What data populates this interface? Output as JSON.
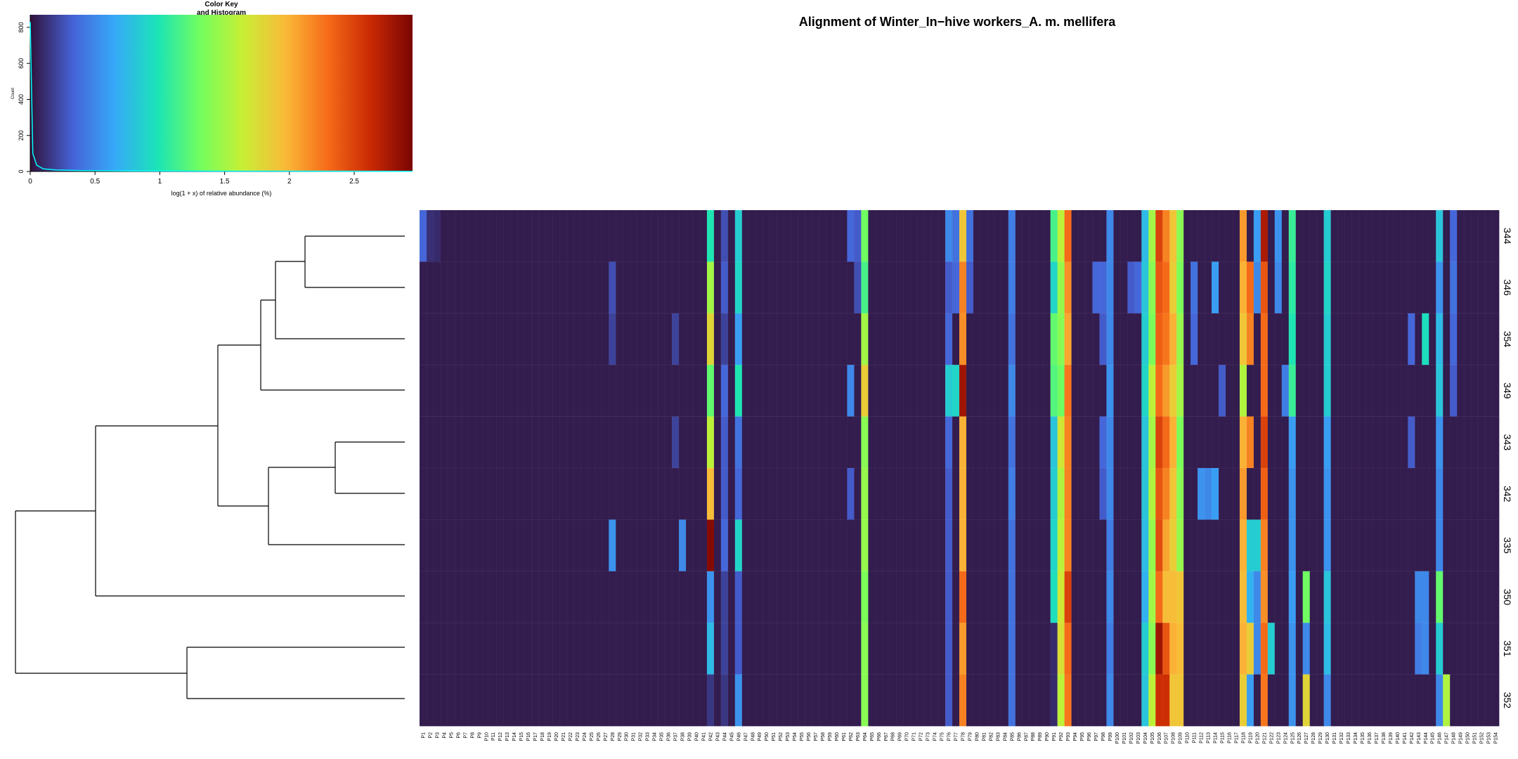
{
  "chart_data": {
    "type": "heatmap",
    "title": "Alignment of Winter_In−hive workers_A. m. mellifera",
    "color_key": {
      "title_line1": "Color Key",
      "title_line2": "and Histogram",
      "xlabel": "log(1 + x) of relative abundance (%)",
      "ylabel": "Count",
      "xticks": [
        "0",
        "0.5",
        "1",
        "1.5",
        "2",
        "2.5"
      ],
      "xtick_values": [
        0,
        0.5,
        1,
        1.5,
        2,
        2.5
      ],
      "yticks": [
        "0",
        "200",
        "400",
        "600",
        "800"
      ],
      "ytick_values": [
        0,
        200,
        400,
        600,
        800
      ],
      "xlim": [
        0,
        2.95
      ],
      "ylim": [
        0,
        870
      ],
      "histogram_x": [
        0.0,
        0.02,
        0.05,
        0.1,
        0.2,
        0.4,
        0.8,
        1.5,
        2.95
      ],
      "histogram_y": [
        830,
        100,
        35,
        15,
        8,
        5,
        3,
        2,
        1
      ]
    },
    "colormap": [
      "#30123b",
      "#4662d7",
      "#36aaf9",
      "#1ae4b6",
      "#72fe5e",
      "#c7ef34",
      "#faba39",
      "#f66b19",
      "#ca2a04",
      "#7a0403"
    ],
    "value_range": [
      0,
      2.95
    ],
    "rows": [
      "344",
      "346",
      "354",
      "349",
      "343",
      "342",
      "335",
      "350",
      "351",
      "352"
    ],
    "columns": [
      "P1",
      "P2",
      "P3",
      "P4",
      "P5",
      "P6",
      "P7",
      "P8",
      "P9",
      "P10",
      "P11",
      "P12",
      "P13",
      "P14",
      "P15",
      "P16",
      "P17",
      "P18",
      "P19",
      "P20",
      "P21",
      "P22",
      "P23",
      "P24",
      "P25",
      "P26",
      "P27",
      "P28",
      "P29",
      "P30",
      "P31",
      "P32",
      "P33",
      "P34",
      "P35",
      "P36",
      "P37",
      "P38",
      "P39",
      "P40",
      "P41",
      "P42",
      "P43",
      "P44",
      "P45",
      "P46",
      "P47",
      "P48",
      "P49",
      "P50",
      "P51",
      "P52",
      "P53",
      "P54",
      "P55",
      "P56",
      "P57",
      "P58",
      "P59",
      "P60",
      "P61",
      "P62",
      "P63",
      "P64",
      "P65",
      "P66",
      "P67",
      "P68",
      "P69",
      "P70",
      "P71",
      "P72",
      "P73",
      "P74",
      "P75",
      "P76",
      "P77",
      "P78",
      "P79",
      "P80",
      "P81",
      "P82",
      "P83",
      "P84",
      "P85",
      "P86",
      "P87",
      "P88",
      "P89",
      "P90",
      "P91",
      "P92",
      "P93",
      "P94",
      "P95",
      "P96",
      "P97",
      "P98",
      "P99",
      "P100",
      "P101",
      "P102",
      "P103",
      "P104",
      "P105",
      "P106",
      "P107",
      "P108",
      "P109",
      "P110",
      "P111",
      "P112",
      "P113",
      "P114",
      "P115",
      "P116",
      "P117",
      "P118",
      "P119",
      "P120",
      "P121",
      "P122",
      "P123",
      "P124",
      "P125",
      "P126",
      "P127",
      "P128",
      "P129",
      "P130",
      "P131",
      "P132",
      "P133",
      "P134",
      "P135",
      "P136",
      "P137",
      "P138",
      "P139",
      "P140",
      "P141",
      "P142",
      "P143",
      "P144",
      "P145",
      "P146",
      "P147",
      "P148",
      "P149",
      "P150",
      "P151",
      "P152",
      "P153",
      "P154"
    ],
    "hot_cells": [
      [
        0,
        0,
        0.35
      ],
      [
        1,
        0,
        0.12
      ],
      [
        2,
        0,
        0.1
      ],
      [
        41,
        0,
        1.0
      ],
      [
        41,
        1,
        1.5
      ],
      [
        41,
        2,
        1.8
      ],
      [
        41,
        3,
        1.25
      ],
      [
        41,
        4,
        1.6
      ],
      [
        41,
        5,
        1.95
      ],
      [
        41,
        6,
        2.9
      ],
      [
        41,
        7,
        0.55
      ],
      [
        41,
        8,
        0.75
      ],
      [
        41,
        9,
        0.15
      ],
      [
        43,
        0,
        0.25
      ],
      [
        43,
        1,
        0.3
      ],
      [
        43,
        2,
        0.2
      ],
      [
        43,
        3,
        0.35
      ],
      [
        43,
        4,
        0.3
      ],
      [
        43,
        5,
        0.3
      ],
      [
        43,
        6,
        0.35
      ],
      [
        43,
        7,
        0.2
      ],
      [
        43,
        8,
        0.2
      ],
      [
        43,
        9,
        0.15
      ],
      [
        45,
        0,
        0.85
      ],
      [
        45,
        1,
        0.9
      ],
      [
        45,
        2,
        0.6
      ],
      [
        45,
        3,
        1.0
      ],
      [
        45,
        4,
        0.4
      ],
      [
        45,
        5,
        0.35
      ],
      [
        45,
        6,
        0.9
      ],
      [
        45,
        7,
        0.3
      ],
      [
        45,
        8,
        0.3
      ],
      [
        45,
        9,
        0.55
      ],
      [
        27,
        1,
        0.25
      ],
      [
        27,
        2,
        0.2
      ],
      [
        27,
        6,
        0.55
      ],
      [
        37,
        6,
        0.5
      ],
      [
        36,
        4,
        0.2
      ],
      [
        36,
        2,
        0.2
      ],
      [
        61,
        0,
        0.35
      ],
      [
        61,
        3,
        0.5
      ],
      [
        61,
        5,
        0.3
      ],
      [
        62,
        0,
        0.3
      ],
      [
        62,
        1,
        0.25
      ],
      [
        63,
        0,
        1.3
      ],
      [
        63,
        1,
        1.15
      ],
      [
        63,
        2,
        1.5
      ],
      [
        63,
        3,
        1.85
      ],
      [
        63,
        4,
        1.4
      ],
      [
        63,
        5,
        1.45
      ],
      [
        63,
        6,
        1.45
      ],
      [
        63,
        7,
        1.35
      ],
      [
        63,
        8,
        1.4
      ],
      [
        63,
        9,
        1.4
      ],
      [
        75,
        0,
        0.5
      ],
      [
        75,
        1,
        0.3
      ],
      [
        75,
        2,
        0.35
      ],
      [
        75,
        3,
        0.85
      ],
      [
        75,
        4,
        0.35
      ],
      [
        75,
        5,
        0.3
      ],
      [
        75,
        6,
        0.3
      ],
      [
        75,
        7,
        0.3
      ],
      [
        75,
        8,
        0.3
      ],
      [
        75,
        9,
        0.3
      ],
      [
        76,
        0,
        0.4
      ],
      [
        76,
        1,
        0.35
      ],
      [
        76,
        3,
        0.9
      ],
      [
        77,
        0,
        1.9
      ],
      [
        77,
        1,
        2.2
      ],
      [
        77,
        2,
        2.15
      ],
      [
        77,
        3,
        2.8
      ],
      [
        77,
        4,
        2.0
      ],
      [
        77,
        5,
        2.0
      ],
      [
        77,
        6,
        2.0
      ],
      [
        77,
        7,
        2.3
      ],
      [
        77,
        8,
        2.1
      ],
      [
        77,
        9,
        2.2
      ],
      [
        78,
        0,
        0.4
      ],
      [
        78,
        1,
        0.3
      ],
      [
        84,
        0,
        0.45
      ],
      [
        84,
        1,
        0.45
      ],
      [
        84,
        2,
        0.4
      ],
      [
        84,
        3,
        0.5
      ],
      [
        84,
        4,
        0.4
      ],
      [
        84,
        5,
        0.45
      ],
      [
        84,
        6,
        0.4
      ],
      [
        84,
        7,
        0.4
      ],
      [
        84,
        8,
        0.4
      ],
      [
        84,
        9,
        0.4
      ],
      [
        90,
        0,
        1.15
      ],
      [
        90,
        1,
        0.9
      ],
      [
        90,
        2,
        1.25
      ],
      [
        90,
        3,
        1.2
      ],
      [
        90,
        4,
        0.8
      ],
      [
        90,
        5,
        0.85
      ],
      [
        90,
        6,
        0.9
      ],
      [
        90,
        7,
        0.95
      ],
      [
        90,
        8,
        0.1
      ],
      [
        90,
        9,
        0.1
      ],
      [
        91,
        0,
        1.6
      ],
      [
        91,
        1,
        1.45
      ],
      [
        91,
        2,
        1.4
      ],
      [
        91,
        3,
        1.3
      ],
      [
        91,
        4,
        1.7
      ],
      [
        91,
        5,
        1.55
      ],
      [
        91,
        6,
        1.6
      ],
      [
        91,
        7,
        1.7
      ],
      [
        91,
        8,
        1.75
      ],
      [
        91,
        9,
        1.6
      ],
      [
        92,
        0,
        2.3
      ],
      [
        92,
        1,
        2.15
      ],
      [
        92,
        2,
        2.05
      ],
      [
        92,
        3,
        2.25
      ],
      [
        92,
        4,
        2.2
      ],
      [
        92,
        5,
        2.2
      ],
      [
        92,
        6,
        2.2
      ],
      [
        92,
        7,
        2.5
      ],
      [
        92,
        8,
        2.3
      ],
      [
        92,
        9,
        2.25
      ],
      [
        96,
        1,
        0.35
      ],
      [
        97,
        1,
        0.35
      ],
      [
        97,
        2,
        0.3
      ],
      [
        97,
        4,
        0.35
      ],
      [
        97,
        5,
        0.3
      ],
      [
        98,
        0,
        0.5
      ],
      [
        98,
        1,
        0.5
      ],
      [
        98,
        2,
        0.5
      ],
      [
        98,
        3,
        0.55
      ],
      [
        98,
        4,
        0.5
      ],
      [
        98,
        5,
        0.5
      ],
      [
        98,
        6,
        0.45
      ],
      [
        98,
        7,
        0.5
      ],
      [
        98,
        8,
        0.45
      ],
      [
        98,
        9,
        0.5
      ],
      [
        101,
        1,
        0.3
      ],
      [
        102,
        1,
        0.35
      ],
      [
        103,
        0,
        0.75
      ],
      [
        103,
        1,
        0.8
      ],
      [
        103,
        2,
        0.85
      ],
      [
        103,
        3,
        0.9
      ],
      [
        103,
        4,
        0.8
      ],
      [
        103,
        5,
        0.8
      ],
      [
        103,
        6,
        0.75
      ],
      [
        103,
        7,
        0.7
      ],
      [
        103,
        8,
        0.85
      ],
      [
        103,
        9,
        0.8
      ],
      [
        104,
        0,
        1.5
      ],
      [
        104,
        1,
        1.4
      ],
      [
        104,
        2,
        1.35
      ],
      [
        104,
        3,
        1.6
      ],
      [
        104,
        4,
        1.5
      ],
      [
        104,
        5,
        1.55
      ],
      [
        104,
        6,
        1.45
      ],
      [
        104,
        7,
        1.5
      ],
      [
        104,
        8,
        1.4
      ],
      [
        104,
        9,
        1.6
      ],
      [
        105,
        0,
        2.5
      ],
      [
        105,
        1,
        2.4
      ],
      [
        105,
        2,
        2.35
      ],
      [
        105,
        3,
        2.3
      ],
      [
        105,
        4,
        2.5
      ],
      [
        105,
        5,
        2.4
      ],
      [
        105,
        6,
        2.45
      ],
      [
        105,
        7,
        2.3
      ],
      [
        105,
        8,
        2.8
      ],
      [
        105,
        9,
        2.6
      ],
      [
        106,
        0,
        2.2
      ],
      [
        106,
        1,
        2.3
      ],
      [
        106,
        2,
        2.25
      ],
      [
        106,
        3,
        2.1
      ],
      [
        106,
        4,
        2.3
      ],
      [
        106,
        5,
        2.2
      ],
      [
        106,
        6,
        2.05
      ],
      [
        106,
        7,
        1.95
      ],
      [
        106,
        8,
        2.4
      ],
      [
        106,
        9,
        2.6
      ],
      [
        107,
        0,
        1.9
      ],
      [
        107,
        1,
        1.85
      ],
      [
        107,
        2,
        2.0
      ],
      [
        107,
        3,
        1.85
      ],
      [
        107,
        4,
        2.0
      ],
      [
        107,
        5,
        1.9
      ],
      [
        107,
        6,
        1.85
      ],
      [
        107,
        7,
        1.95
      ],
      [
        107,
        8,
        2.0
      ],
      [
        107,
        9,
        1.9
      ],
      [
        108,
        0,
        1.4
      ],
      [
        108,
        1,
        1.35
      ],
      [
        108,
        2,
        1.45
      ],
      [
        108,
        3,
        1.5
      ],
      [
        108,
        4,
        1.35
      ],
      [
        108,
        5,
        1.4
      ],
      [
        108,
        6,
        1.45
      ],
      [
        108,
        7,
        1.9
      ],
      [
        108,
        8,
        1.95
      ],
      [
        108,
        9,
        1.9
      ],
      [
        110,
        1,
        0.4
      ],
      [
        110,
        2,
        0.35
      ],
      [
        111,
        5,
        0.55
      ],
      [
        112,
        5,
        0.5
      ],
      [
        113,
        1,
        0.6
      ],
      [
        113,
        5,
        0.6
      ],
      [
        114,
        3,
        0.3
      ],
      [
        117,
        0,
        2.1
      ],
      [
        117,
        1,
        2.0
      ],
      [
        117,
        2,
        1.9
      ],
      [
        117,
        3,
        1.55
      ],
      [
        117,
        4,
        2.0
      ],
      [
        117,
        5,
        2.1
      ],
      [
        117,
        6,
        2.0
      ],
      [
        117,
        7,
        1.95
      ],
      [
        117,
        8,
        2.0
      ],
      [
        117,
        9,
        1.85
      ],
      [
        118,
        1,
        2.3
      ],
      [
        118,
        2,
        2.2
      ],
      [
        118,
        4,
        2.2
      ],
      [
        118,
        6,
        0.85
      ],
      [
        118,
        7,
        0.7
      ],
      [
        118,
        8,
        1.85
      ],
      [
        118,
        9,
        0.6
      ],
      [
        119,
        0,
        0.6
      ],
      [
        119,
        1,
        0.5
      ],
      [
        119,
        6,
        0.85
      ],
      [
        119,
        7,
        0.5
      ],
      [
        119,
        8,
        0.5
      ],
      [
        120,
        0,
        2.75
      ],
      [
        120,
        1,
        2.4
      ],
      [
        120,
        2,
        2.3
      ],
      [
        120,
        3,
        2.3
      ],
      [
        120,
        4,
        2.5
      ],
      [
        120,
        5,
        2.35
      ],
      [
        120,
        6,
        2.2
      ],
      [
        120,
        7,
        2.15
      ],
      [
        120,
        8,
        2.3
      ],
      [
        120,
        9,
        2.25
      ],
      [
        121,
        8,
        0.85
      ],
      [
        122,
        0,
        0.55
      ],
      [
        122,
        1,
        0.5
      ],
      [
        123,
        3,
        0.45
      ],
      [
        124,
        0,
        1.1
      ],
      [
        124,
        1,
        1.05
      ],
      [
        124,
        2,
        1.0
      ],
      [
        124,
        3,
        1.1
      ],
      [
        124,
        4,
        0.6
      ],
      [
        124,
        5,
        0.55
      ],
      [
        124,
        6,
        0.55
      ],
      [
        124,
        7,
        0.6
      ],
      [
        124,
        8,
        0.55
      ],
      [
        124,
        9,
        0.55
      ],
      [
        126,
        7,
        1.3
      ],
      [
        126,
        8,
        0.5
      ],
      [
        126,
        9,
        1.8
      ],
      [
        129,
        0,
        0.85
      ],
      [
        129,
        1,
        0.9
      ],
      [
        129,
        2,
        0.85
      ],
      [
        129,
        3,
        0.85
      ],
      [
        129,
        4,
        0.6
      ],
      [
        129,
        5,
        0.55
      ],
      [
        129,
        6,
        0.55
      ],
      [
        129,
        7,
        0.8
      ],
      [
        129,
        8,
        0.75
      ],
      [
        129,
        9,
        0.5
      ],
      [
        141,
        2,
        0.35
      ],
      [
        141,
        4,
        0.3
      ],
      [
        142,
        7,
        0.5
      ],
      [
        142,
        8,
        0.45
      ],
      [
        143,
        2,
        0.95
      ],
      [
        143,
        7,
        0.5
      ],
      [
        143,
        8,
        0.5
      ],
      [
        145,
        0,
        0.8
      ],
      [
        145,
        1,
        0.55
      ],
      [
        145,
        2,
        0.75
      ],
      [
        145,
        3,
        0.8
      ],
      [
        145,
        4,
        0.55
      ],
      [
        145,
        5,
        0.5
      ],
      [
        145,
        6,
        0.5
      ],
      [
        145,
        7,
        1.25
      ],
      [
        145,
        8,
        0.85
      ],
      [
        145,
        9,
        0.5
      ],
      [
        146,
        9,
        1.55
      ],
      [
        147,
        0,
        0.35
      ],
      [
        147,
        1,
        0.4
      ],
      [
        147,
        2,
        0.35
      ],
      [
        147,
        3,
        0.3
      ]
    ]
  }
}
